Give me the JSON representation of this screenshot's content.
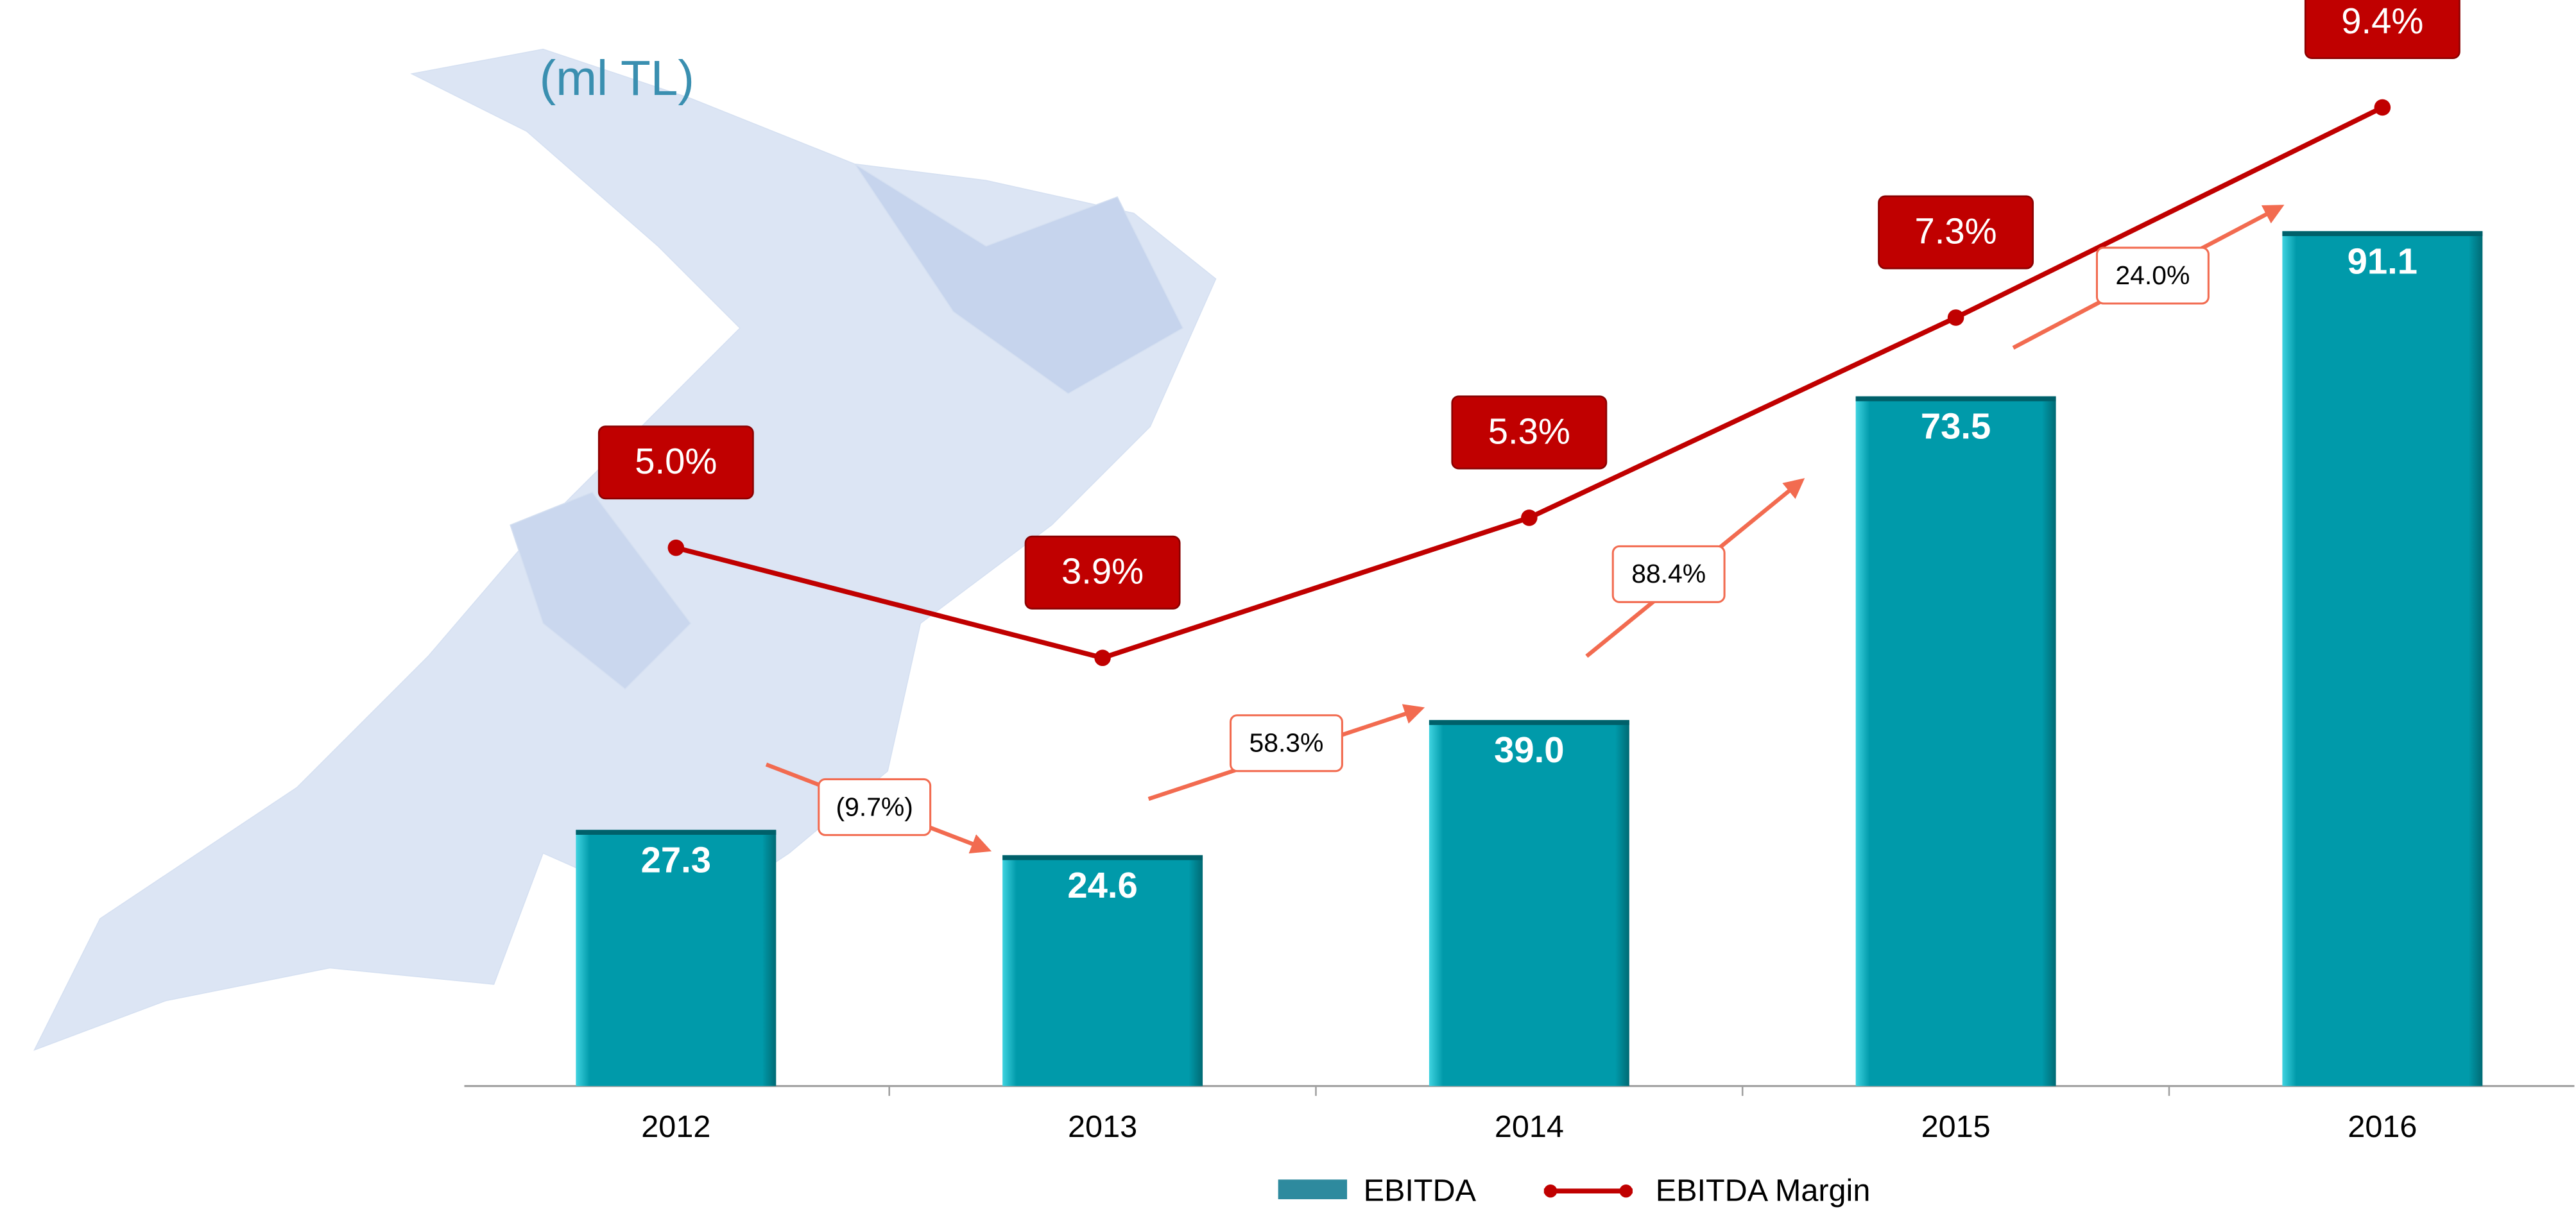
{
  "chart_data": {
    "type": "combo",
    "title": "(ml TL)",
    "categories": [
      "2012",
      "2013",
      "2014",
      "2015",
      "2016"
    ],
    "series": [
      {
        "name": "EBITDA",
        "type": "bar",
        "color": "#009aaa",
        "values": [
          27.3,
          24.6,
          39.0,
          73.5,
          91.1
        ],
        "value_labels": [
          "27.3",
          "24.6",
          "39.0",
          "73.5",
          "91.1"
        ]
      },
      {
        "name": "EBITDA Margin",
        "type": "line",
        "color": "#c00000",
        "values": [
          5.0,
          3.9,
          5.3,
          7.3,
          9.4
        ],
        "value_labels": [
          "5.0%",
          "3.9%",
          "5.3%",
          "7.3%",
          "9.4%"
        ]
      }
    ],
    "growth": {
      "color": "#f26b50",
      "values": [
        -9.7,
        58.3,
        88.4,
        24.0
      ],
      "value_labels": [
        "(9.7%)",
        "58.3%",
        "88.4%",
        "24.0%"
      ]
    }
  }
}
